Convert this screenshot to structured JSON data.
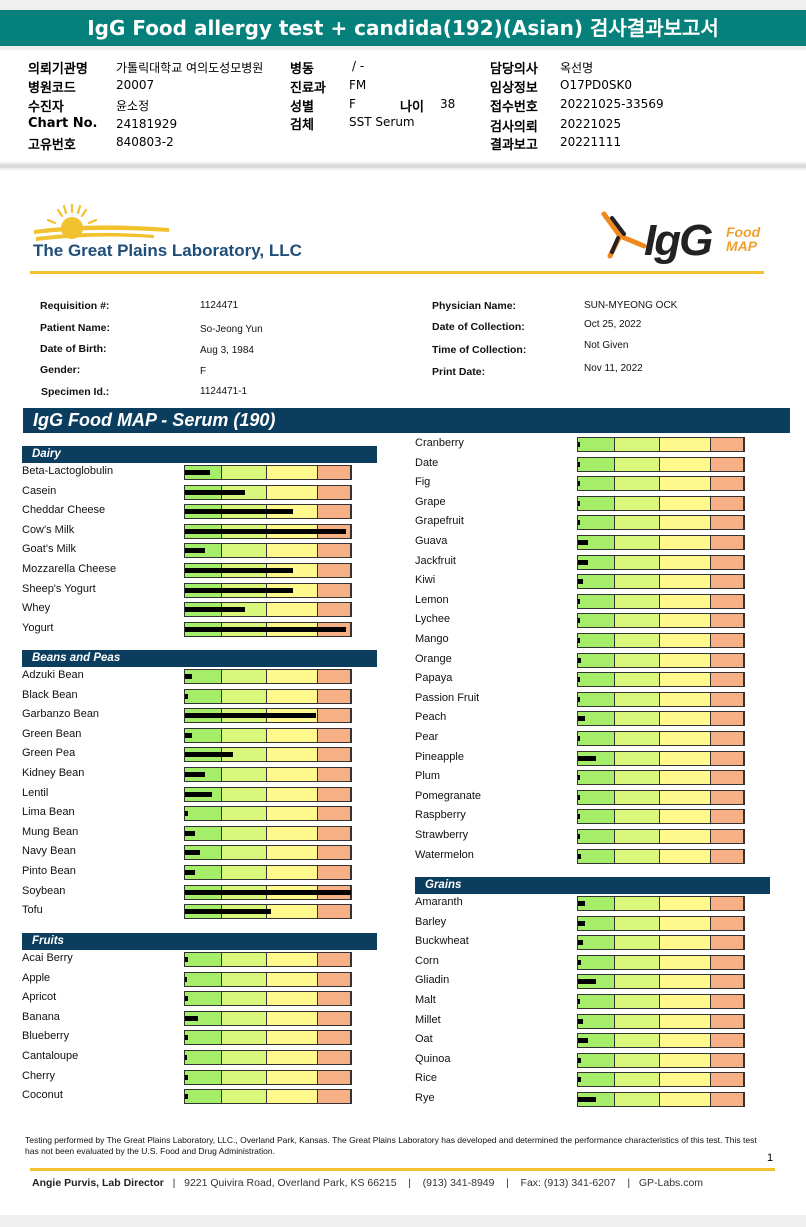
{
  "title": "IgG Food allergy test + candida(192)(Asian) 검사결과보고서",
  "header": {
    "left": [
      {
        "label": "의뢰기관명",
        "value": "가톨릭대학교 여의도성모병원"
      },
      {
        "label": "병원코드",
        "value": "20007"
      },
      {
        "label": "수진자",
        "value": "윤소정"
      },
      {
        "label": "Chart No.",
        "value": "24181929"
      },
      {
        "label": "고유번호",
        "value": "840803-2"
      }
    ],
    "mid": [
      {
        "label": "병동",
        "value": "/ -"
      },
      {
        "label": "진료과",
        "value": "FM"
      },
      {
        "label": "성별",
        "value": "F"
      },
      {
        "label": "검체",
        "value": "SST Serum"
      }
    ],
    "age": {
      "label": "나이",
      "value": "38"
    },
    "right": [
      {
        "label": "담당의사",
        "value": "옥선명"
      },
      {
        "label": "임상정보",
        "value": "O17PD0SK0"
      },
      {
        "label": "접수번호",
        "value": "20221025-33569"
      },
      {
        "label": "검사의뢰",
        "value": "20221025"
      },
      {
        "label": "결과보고",
        "value": "20221111"
      }
    ]
  },
  "lab": {
    "name": "The Great Plains Laboratory, LLC",
    "logo_main": "IgG",
    "logo_food": "Food",
    "logo_map": "MAP"
  },
  "patient": {
    "left": [
      {
        "label": "Requisition #:",
        "value": "1124471"
      },
      {
        "label": "Patient Name:",
        "value": "So-Jeong Yun"
      },
      {
        "label": "Date of Birth:",
        "value": "Aug 3, 1984"
      },
      {
        "label": "Gender:",
        "value": "F"
      },
      {
        "label": "Specimen Id.:",
        "value": "1124471-1"
      }
    ],
    "right": [
      {
        "label": "Physician Name:",
        "value": "SUN-MYEONG OCK"
      },
      {
        "label": "Date of Collection:",
        "value": "Oct 25, 2022"
      },
      {
        "label": "Time of Collection:",
        "value": "Not Given"
      },
      {
        "label": "Print Date:",
        "value": "Nov 11, 2022"
      }
    ]
  },
  "map_title": "IgG Food MAP - Serum (190)",
  "meter_colors": [
    "#a6ee6a",
    "#d9f77a",
    "#fff88c",
    "#f7b085"
  ],
  "categories": [
    {
      "name": "Dairy",
      "items": [
        {
          "label": "Beta-Lactoglobulin",
          "level": 0.15
        },
        {
          "label": "Casein",
          "level": 0.36
        },
        {
          "label": "Cheddar Cheese",
          "level": 0.65
        },
        {
          "label": "Cow's Milk",
          "level": 0.97
        },
        {
          "label": "Goat's Milk",
          "level": 0.12
        },
        {
          "label": "Mozzarella Cheese",
          "level": 0.65
        },
        {
          "label": "Sheep's Yogurt",
          "level": 0.65
        },
        {
          "label": "Whey",
          "level": 0.36
        },
        {
          "label": "Yogurt",
          "level": 0.97
        }
      ]
    },
    {
      "name": "Beans and Peas",
      "items": [
        {
          "label": "Adzuki Bean",
          "level": 0.04
        },
        {
          "label": "Black Bean",
          "level": 0.02
        },
        {
          "label": "Garbanzo Bean",
          "level": 0.79
        },
        {
          "label": "Green Bean",
          "level": 0.04
        },
        {
          "label": "Green Pea",
          "level": 0.29
        },
        {
          "label": "Kidney Bean",
          "level": 0.12
        },
        {
          "label": "Lentil",
          "level": 0.16
        },
        {
          "label": "Lima Bean",
          "level": 0.02
        },
        {
          "label": "Mung Bean",
          "level": 0.06
        },
        {
          "label": "Navy Bean",
          "level": 0.09
        },
        {
          "label": "Pinto Bean",
          "level": 0.06
        },
        {
          "label": "Soybean",
          "level": 1.0
        },
        {
          "label": "Tofu",
          "level": 0.52
        }
      ]
    },
    {
      "name": "Fruits",
      "items": [
        {
          "label": "Acai Berry",
          "level": 0.02
        },
        {
          "label": "Apple",
          "level": 0.01
        },
        {
          "label": "Apricot",
          "level": 0.02
        },
        {
          "label": "Banana",
          "level": 0.08
        },
        {
          "label": "Blueberry",
          "level": 0.02
        },
        {
          "label": "Cantaloupe",
          "level": 0.01
        },
        {
          "label": "Cherry",
          "level": 0.02
        },
        {
          "label": "Coconut",
          "level": 0.02
        }
      ]
    },
    {
      "name": "",
      "items": [
        {
          "label": "Cranberry",
          "level": 0.01
        },
        {
          "label": "Date",
          "level": 0.0
        },
        {
          "label": "Fig",
          "level": 0.01
        },
        {
          "label": "Grape",
          "level": 0.01
        },
        {
          "label": "Grapefruit",
          "level": 0.01
        },
        {
          "label": "Guava",
          "level": 0.06
        },
        {
          "label": "Jackfruit",
          "level": 0.06
        },
        {
          "label": "Kiwi",
          "level": 0.03
        },
        {
          "label": "Lemon",
          "level": 0.01
        },
        {
          "label": "Lychee",
          "level": 0.01
        },
        {
          "label": "Mango",
          "level": 0.01
        },
        {
          "label": "Orange",
          "level": 0.02
        },
        {
          "label": "Papaya",
          "level": 0.01
        },
        {
          "label": "Passion Fruit",
          "level": 0.01
        },
        {
          "label": "Peach",
          "level": 0.04
        },
        {
          "label": "Pear",
          "level": 0.01
        },
        {
          "label": "Pineapple",
          "level": 0.11
        },
        {
          "label": "Plum",
          "level": 0.0
        },
        {
          "label": "Pomegranate",
          "level": 0.0
        },
        {
          "label": "Raspberry",
          "level": 0.01
        },
        {
          "label": "Strawberry",
          "level": 0.0
        },
        {
          "label": "Watermelon",
          "level": 0.02
        }
      ]
    },
    {
      "name": "Grains",
      "items": [
        {
          "label": "Amaranth",
          "level": 0.04
        },
        {
          "label": "Barley",
          "level": 0.04
        },
        {
          "label": "Buckwheat",
          "level": 0.03
        },
        {
          "label": "Corn",
          "level": 0.02
        },
        {
          "label": "Gliadin",
          "level": 0.11
        },
        {
          "label": "Malt",
          "level": 0.01
        },
        {
          "label": "Millet",
          "level": 0.03
        },
        {
          "label": "Oat",
          "level": 0.06
        },
        {
          "label": "Quinoa",
          "level": 0.02
        },
        {
          "label": "Rice",
          "level": 0.02
        },
        {
          "label": "Rye",
          "level": 0.11
        }
      ]
    }
  ],
  "footnote": "Testing performed by The Great Plains Laboratory, LLC., Overland Park, Kansas.  The Great Plains Laboratory has developed and determined the performance characteristics of this test.  This test has not been evaluated by the U.S.  Food and Drug Administration.",
  "page_number": "1",
  "footer": {
    "director": "Angie Purvis, Lab Director",
    "address": "9221 Quivira Road, Overland Park, KS 66215",
    "phone": "(913) 341-8949",
    "fax": "Fax: (913) 341-6207",
    "web": "GP-Labs.com"
  }
}
